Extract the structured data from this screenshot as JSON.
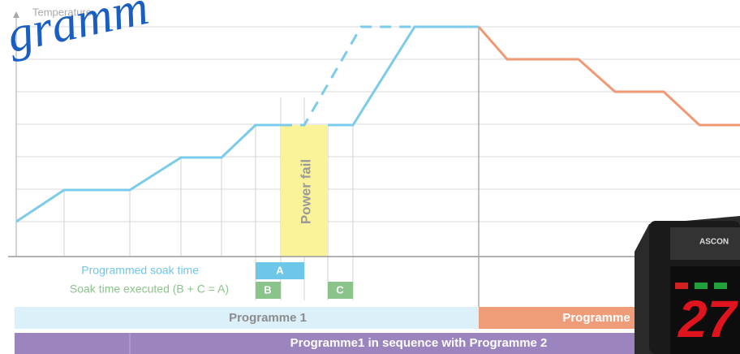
{
  "axis_label": "Temperature",
  "handwriting": "gramm",
  "power_fail": "Power fail",
  "legend": {
    "programmed": "Programmed soak time",
    "executed": "Soak time executed (B + C = A)"
  },
  "boxes": {
    "a": "A",
    "b": "B",
    "c": "C"
  },
  "bars": {
    "programme1": "Programme  1",
    "programme2": "Programme",
    "sequence": "Programme1  in sequence with Programme  2"
  },
  "device": {
    "brand": "ASCON",
    "display": "27"
  }
}
